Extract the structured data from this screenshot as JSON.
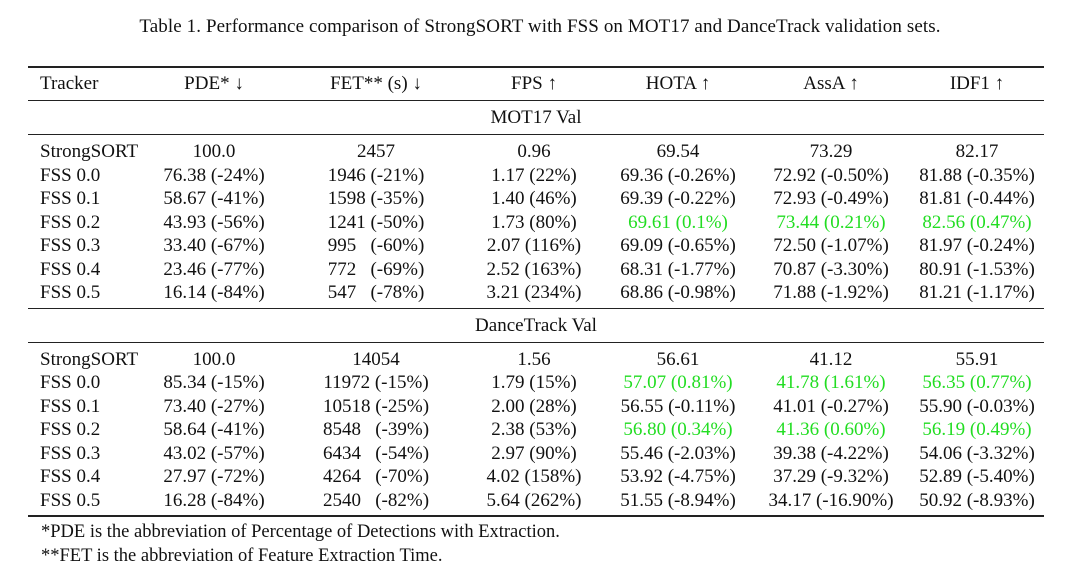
{
  "caption": "Table 1. Performance comparison of StrongSORT with FSS on MOT17 and DanceTrack validation sets.",
  "headers": [
    "Tracker",
    "PDE* ↓",
    "FET** (s) ↓",
    "FPS ↑",
    "HOTA ↑",
    "AssA ↑",
    "IDF1 ↑"
  ],
  "highlight_color": "#22dd22",
  "sections": [
    {
      "title": "MOT17 Val",
      "rows": [
        {
          "cells": [
            "StrongSORT",
            "100.0",
            "2457",
            "0.96",
            "69.54",
            "73.29",
            "82.17"
          ],
          "highlight": []
        },
        {
          "cells": [
            "FSS 0.0",
            "76.38 (-24%)",
            "1946 (-21%)",
            "1.17 (22%)",
            "69.36 (-0.26%)",
            "72.92 (-0.50%)",
            "81.88 (-0.35%)"
          ],
          "highlight": []
        },
        {
          "cells": [
            "FSS 0.1",
            "58.67 (-41%)",
            "1598 (-35%)",
            "1.40 (46%)",
            "69.39 (-0.22%)",
            "72.93 (-0.49%)",
            "81.81 (-0.44%)"
          ],
          "highlight": []
        },
        {
          "cells": [
            "FSS 0.2",
            "43.93 (-56%)",
            "1241 (-50%)",
            "1.73 (80%)",
            "69.61 (0.1%)",
            "73.44 (0.21%)",
            "82.56 (0.47%)"
          ],
          "highlight": [
            4,
            5,
            6
          ]
        },
        {
          "cells": [
            "FSS 0.3",
            "33.40 (-67%)",
            "995   (-60%)",
            "2.07 (116%)",
            "69.09 (-0.65%)",
            "72.50 (-1.07%)",
            "81.97 (-0.24%)"
          ],
          "highlight": []
        },
        {
          "cells": [
            "FSS 0.4",
            "23.46 (-77%)",
            "772   (-69%)",
            "2.52 (163%)",
            "68.31 (-1.77%)",
            "70.87 (-3.30%)",
            "80.91 (-1.53%)"
          ],
          "highlight": []
        },
        {
          "cells": [
            "FSS 0.5",
            "16.14 (-84%)",
            "547   (-78%)",
            "3.21 (234%)",
            "68.86 (-0.98%)",
            "71.88 (-1.92%)",
            "81.21 (-1.17%)"
          ],
          "highlight": []
        }
      ]
    },
    {
      "title": "DanceTrack Val",
      "rows": [
        {
          "cells": [
            "StrongSORT",
            "100.0",
            "14054",
            "1.56",
            "56.61",
            "41.12",
            "55.91"
          ],
          "highlight": []
        },
        {
          "cells": [
            "FSS 0.0",
            "85.34 (-15%)",
            "11972 (-15%)",
            "1.79 (15%)",
            "57.07 (0.81%)",
            "41.78 (1.61%)",
            "56.35 (0.77%)"
          ],
          "highlight": [
            4,
            5,
            6
          ]
        },
        {
          "cells": [
            "FSS 0.1",
            "73.40 (-27%)",
            "10518 (-25%)",
            "2.00 (28%)",
            "56.55 (-0.11%)",
            "41.01 (-0.27%)",
            "55.90 (-0.03%)"
          ],
          "highlight": []
        },
        {
          "cells": [
            "FSS 0.2",
            "58.64 (-41%)",
            "8548   (-39%)",
            "2.38 (53%)",
            "56.80 (0.34%)",
            "41.36 (0.60%)",
            "56.19 (0.49%)"
          ],
          "highlight": [
            4,
            5,
            6
          ]
        },
        {
          "cells": [
            "FSS 0.3",
            "43.02 (-57%)",
            "6434   (-54%)",
            "2.97 (90%)",
            "55.46 (-2.03%)",
            "39.38 (-4.22%)",
            "54.06 (-3.32%)"
          ],
          "highlight": []
        },
        {
          "cells": [
            "FSS 0.4",
            "27.97 (-72%)",
            "4264   (-70%)",
            "4.02 (158%)",
            "53.92 (-4.75%)",
            "37.29 (-9.32%)",
            "52.89 (-5.40%)"
          ],
          "highlight": []
        },
        {
          "cells": [
            "FSS 0.5",
            "16.28 (-84%)",
            "2540   (-82%)",
            "5.64 (262%)",
            "51.55 (-8.94%)",
            "34.17 (-16.90%)",
            "50.92 (-8.93%)"
          ],
          "highlight": []
        }
      ]
    }
  ],
  "footnotes": [
    "*PDE is the abbreviation of Percentage of Detections with Extraction.",
    "**FET is the abbreviation of Feature Extraction Time."
  ]
}
